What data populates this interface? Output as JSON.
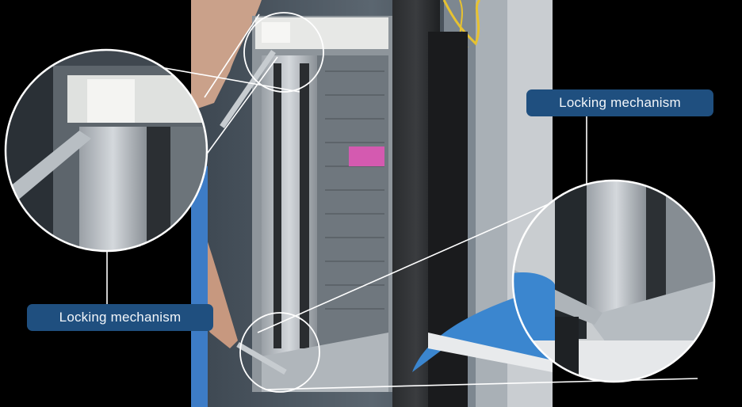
{
  "callouts": {
    "top_right": {
      "label": "Locking mechanism"
    },
    "bottom_left": {
      "label": "Locking mechanism"
    }
  },
  "colors": {
    "callout_background": "#1f4f7f",
    "callout_text": "#f2f6fa",
    "leader_lines": "#ffffff"
  }
}
